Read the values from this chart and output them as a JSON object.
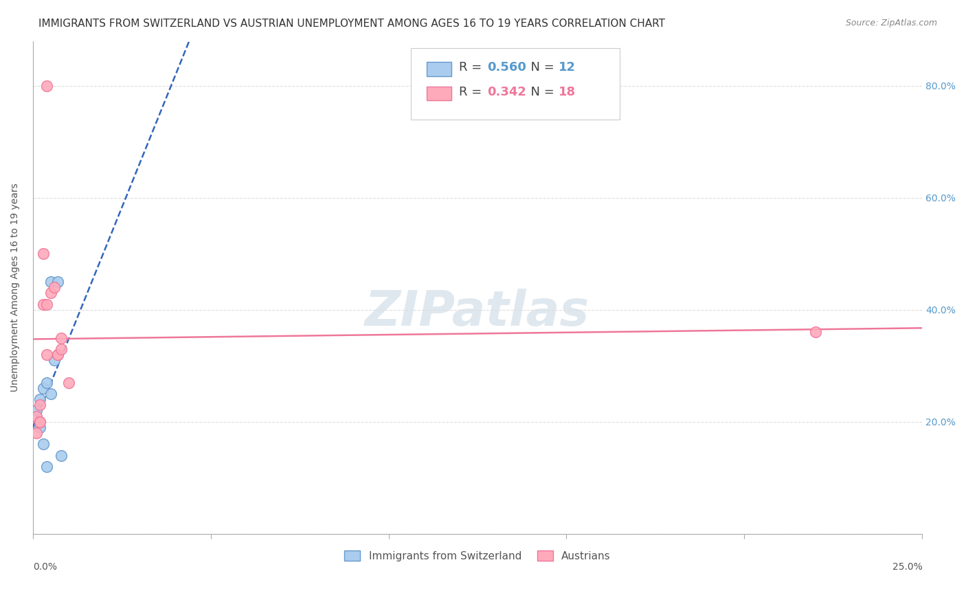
{
  "title": "IMMIGRANTS FROM SWITZERLAND VS AUSTRIAN UNEMPLOYMENT AMONG AGES 16 TO 19 YEARS CORRELATION CHART",
  "source": "Source: ZipAtlas.com",
  "ylabel": "Unemployment Among Ages 16 to 19 years",
  "watermark": "ZIPatlas",
  "legend_blue_r": "0.560",
  "legend_blue_n": "12",
  "legend_pink_r": "0.342",
  "legend_pink_n": "18",
  "legend_blue_label": "Immigrants from Switzerland",
  "legend_pink_label": "Austrians",
  "right_yticks": [
    0.2,
    0.4,
    0.6,
    0.8
  ],
  "right_ytick_labels": [
    "20.0%",
    "40.0%",
    "60.0%",
    "80.0%"
  ],
  "blue_color": "#AACCEE",
  "blue_color_dark": "#6699CC",
  "pink_color": "#FFAABB",
  "pink_color_dark": "#EE7799",
  "blue_line_color": "#3366BB",
  "pink_line_color": "#EE7799",
  "swiss_x": [
    0.001,
    0.002,
    0.002,
    0.003,
    0.003,
    0.004,
    0.004,
    0.005,
    0.005,
    0.006,
    0.007,
    0.008
  ],
  "swiss_y": [
    0.22,
    0.19,
    0.24,
    0.16,
    0.26,
    0.27,
    0.12,
    0.25,
    0.45,
    0.31,
    0.45,
    0.14
  ],
  "austrian_x": [
    0.001,
    0.001,
    0.002,
    0.002,
    0.002,
    0.003,
    0.003,
    0.004,
    0.004,
    0.005,
    0.006,
    0.007,
    0.007,
    0.008,
    0.008,
    0.01,
    0.22,
    0.004
  ],
  "austrian_y": [
    0.18,
    0.21,
    0.2,
    0.23,
    0.2,
    0.41,
    0.5,
    0.41,
    0.32,
    0.43,
    0.44,
    0.32,
    0.32,
    0.33,
    0.35,
    0.27,
    0.36,
    0.8
  ],
  "xlim": [
    0.0,
    0.25
  ],
  "ylim": [
    0.0,
    0.88
  ],
  "title_fontsize": 11,
  "source_fontsize": 9,
  "axis_label_fontsize": 10,
  "tick_fontsize": 10,
  "legend_fontsize": 13
}
